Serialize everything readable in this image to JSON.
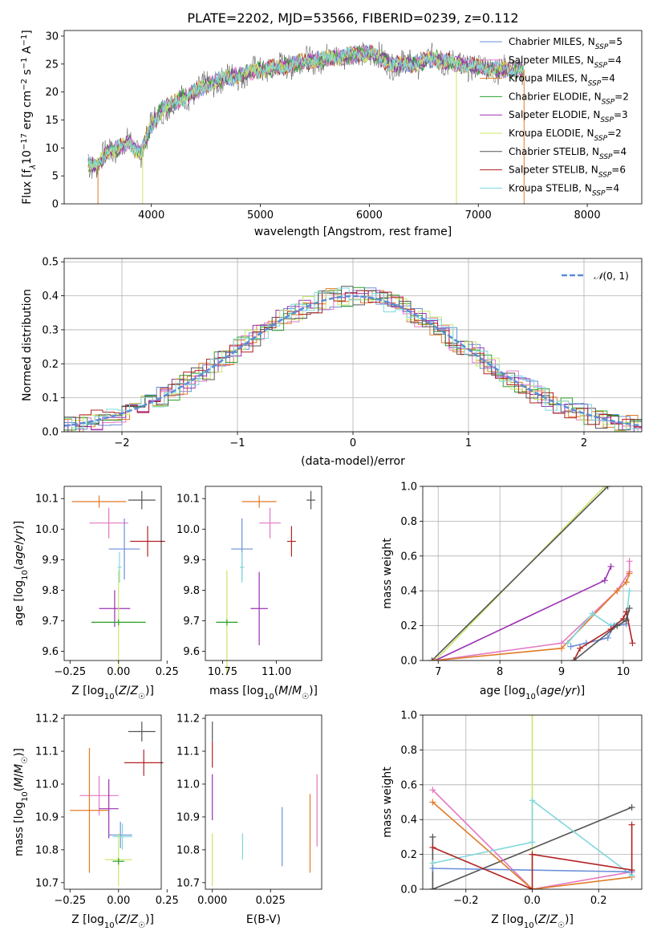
{
  "title": "PLATE=2202, MJD=53566, FIBERID=0239, z=0.112",
  "colors": {
    "Chabrier MILES": "#6a8fd8",
    "Salpeter MILES": "#e377c2",
    "Kroupa MILES": "#e07b28",
    "Chabrier ELODIE": "#2ca02c",
    "Salpeter ELODIE": "#9b30b4",
    "Kroupa ELODIE": "#c7e86a",
    "Chabrier STELIB": "#555555",
    "Salpeter STELIB": "#b22222",
    "Kroupa STELIB": "#7fd8dc"
  },
  "chart_data": [
    {
      "id": "spectrum",
      "type": "line",
      "xlabel": "wavelength [Angstrom, rest frame]",
      "ylabel": "Flux [f_λ10^-17 erg cm^-2 s^-1 A^-1]",
      "xlim": [
        3200,
        8500
      ],
      "ylim": [
        0,
        31
      ],
      "xticks": [
        4000,
        5000,
        6000,
        7000,
        8000
      ],
      "yticks": [
        0,
        5,
        10,
        15,
        20,
        25,
        30
      ],
      "grid": false,
      "legend_position": "top-right",
      "continuum": {
        "x": [
          3400,
          3500,
          3600,
          3700,
          3800,
          3900,
          4000,
          4100,
          4200,
          4400,
          4600,
          4800,
          5000,
          5200,
          5400,
          5600,
          5800,
          6000,
          6200,
          6400,
          6600,
          6800,
          7000,
          7200,
          7400
        ],
        "y": [
          7.5,
          6.5,
          9.5,
          10,
          11,
          9,
          14,
          17,
          18,
          20,
          22,
          23,
          24,
          24.5,
          25.5,
          26,
          26.5,
          27,
          25,
          25,
          26,
          25,
          24.5,
          24,
          24
        ]
      },
      "series": [
        {
          "name": "Chabrier MILES, N_SSP=5",
          "label": "Chabrier MILES",
          "sub": "SSP",
          "n": "=5"
        },
        {
          "name": "Salpeter MILES, N_SSP=4",
          "label": "Salpeter MILES",
          "sub": "SSP",
          "n": "=4"
        },
        {
          "name": "Kroupa MILES, N_SSP=4",
          "label": "Kroupa MILES",
          "sub": "SSP",
          "n": "=4"
        },
        {
          "name": "Chabrier ELODIE, N_SSP=2",
          "label": "Chabrier ELODIE",
          "sub": "SSP",
          "n": "=2"
        },
        {
          "name": "Salpeter ELODIE, N_SSP=3",
          "label": "Salpeter ELODIE",
          "sub": "SSP",
          "n": "=3"
        },
        {
          "name": "Kroupa ELODIE, N_SSP=2",
          "label": "Kroupa ELODIE",
          "sub": "SSP",
          "n": "=2"
        },
        {
          "name": "Chabrier STELIB, N_SSP=4",
          "label": "Chabrier STELIB",
          "sub": "SSP",
          "n": "=4"
        },
        {
          "name": "Salpeter STELIB, N_SSP=6",
          "label": "Salpeter STELIB",
          "sub": "SSP",
          "n": "=6"
        },
        {
          "name": "Kroupa STELIB, N_SSP=4",
          "label": "Kroupa STELIB",
          "sub": "SSP",
          "n": "=4"
        }
      ]
    },
    {
      "id": "residuals",
      "type": "histogram",
      "xlabel": "(data-model)/error",
      "ylabel": "Normed distribution",
      "xlim": [
        -2.5,
        2.5
      ],
      "ylim": [
        0,
        0.51
      ],
      "xticks": [
        -2,
        -1,
        0,
        1,
        2
      ],
      "yticks": [
        0.0,
        0.1,
        0.2,
        0.3,
        0.4,
        0.5
      ],
      "grid": true,
      "legend_position": "top-right",
      "reference": {
        "name": "N(0,1)",
        "mean": 0,
        "sigma": 1
      },
      "bin_width": 0.1
    },
    {
      "id": "age-vs-Z",
      "type": "errorbar",
      "xlabel": "Z [log10(Z/Z☉)]",
      "ylabel": "age  [log10(age/yr)]",
      "xlim": [
        -0.28,
        0.22
      ],
      "ylim": [
        9.57,
        10.14
      ],
      "xticks": [
        -0.25,
        0.0,
        0.25
      ],
      "yticks": [
        9.6,
        9.7,
        9.8,
        9.9,
        10.0,
        10.1
      ],
      "grid": false,
      "points": [
        {
          "model": "Chabrier STELIB",
          "x": 0.12,
          "y": 10.095,
          "xerr": 0.07,
          "yerr": 0.03
        },
        {
          "model": "Kroupa MILES",
          "x": -0.1,
          "y": 10.09,
          "xerr": 0.14,
          "yerr": 0.02
        },
        {
          "model": "Salpeter MILES",
          "x": -0.05,
          "y": 10.02,
          "xerr": 0.1,
          "yerr": 0.05
        },
        {
          "model": "Salpeter STELIB",
          "x": 0.15,
          "y": 9.96,
          "xerr": 0.09,
          "yerr": 0.05
        },
        {
          "model": "Chabrier MILES",
          "x": 0.03,
          "y": 9.935,
          "xerr": 0.08,
          "yerr": 0.1
        },
        {
          "model": "Kroupa STELIB",
          "x": 0.005,
          "y": 9.875,
          "xerr": 0.01,
          "yerr": 0.05
        },
        {
          "model": "Salpeter ELODIE",
          "x": -0.02,
          "y": 9.74,
          "xerr": 0.08,
          "yerr": 0.06
        },
        {
          "model": "Kroupa ELODIE",
          "x": 0.0,
          "y": 9.695,
          "xerr": 0.1,
          "yerr": 0.17
        },
        {
          "model": "Chabrier ELODIE",
          "x": 0.0,
          "y": 9.695,
          "xerr": 0.14,
          "yerr": 0.01
        }
      ]
    },
    {
      "id": "age-vs-mass",
      "type": "errorbar",
      "xlabel": "mass [log10(M/M☉)]",
      "ylabel": "",
      "xlim": [
        10.67,
        11.21
      ],
      "ylim": [
        9.57,
        10.14
      ],
      "xticks": [
        10.75,
        11.0
      ],
      "yticks": [
        9.6,
        9.7,
        9.8,
        9.9,
        10.0,
        10.1
      ],
      "grid": false,
      "points": [
        {
          "model": "Chabrier STELIB",
          "x": 11.16,
          "y": 10.095,
          "xerr": 0.02,
          "yerr": 0.03
        },
        {
          "model": "Kroupa MILES",
          "x": 10.92,
          "y": 10.09,
          "xerr": 0.08,
          "yerr": 0.02
        },
        {
          "model": "Salpeter MILES",
          "x": 10.97,
          "y": 10.02,
          "xerr": 0.05,
          "yerr": 0.05
        },
        {
          "model": "Salpeter STELIB",
          "x": 11.07,
          "y": 9.96,
          "xerr": 0.02,
          "yerr": 0.05
        },
        {
          "model": "Chabrier MILES",
          "x": 10.84,
          "y": 9.935,
          "xerr": 0.05,
          "yerr": 0.1
        },
        {
          "model": "Kroupa STELIB",
          "x": 10.84,
          "y": 9.875,
          "xerr": 0.01,
          "yerr": 0.05
        },
        {
          "model": "Salpeter ELODIE",
          "x": 10.92,
          "y": 9.74,
          "xerr": 0.04,
          "yerr": 0.12
        },
        {
          "model": "Kroupa ELODIE",
          "x": 10.77,
          "y": 9.695,
          "xerr": 0.05,
          "yerr": 0.17
        },
        {
          "model": "Chabrier ELODIE",
          "x": 10.77,
          "y": 9.695,
          "xerr": 0.05,
          "yerr": 0.01
        }
      ]
    },
    {
      "id": "weight-vs-age",
      "type": "line",
      "xlabel": "age  [log10(age/yr)]",
      "ylabel": "mass weight",
      "xlim": [
        6.75,
        10.3
      ],
      "ylim": [
        0,
        1.0
      ],
      "xticks": [
        7,
        8,
        9,
        10
      ],
      "yticks": [
        0.0,
        0.2,
        0.4,
        0.6,
        0.8,
        1.0
      ],
      "grid": true,
      "series": [
        {
          "model": "Kroupa ELODIE",
          "x": [
            6.95,
            9.7
          ],
          "y": [
            0.0,
            1.0
          ]
        },
        {
          "model": "Chabrier STELIB",
          "x": [
            6.9,
            9.75
          ],
          "y": [
            0.0,
            1.0
          ]
        },
        {
          "model": "Salpeter ELODIE",
          "x": [
            6.95,
            9.7,
            9.8
          ],
          "y": [
            0.0,
            0.46,
            0.54
          ]
        },
        {
          "model": "Salpeter MILES",
          "x": [
            6.95,
            9.0,
            9.9,
            10.1,
            10.1
          ],
          "y": [
            0.0,
            0.1,
            0.4,
            0.51,
            0.57
          ]
        },
        {
          "model": "Kroupa MILES",
          "x": [
            6.95,
            9.0,
            9.9,
            10.05,
            10.1
          ],
          "y": [
            0.0,
            0.07,
            0.4,
            0.45,
            0.5
          ]
        },
        {
          "model": "Kroupa STELIB",
          "x": [
            9.1,
            9.5,
            9.8,
            10.05,
            10.1
          ],
          "y": [
            0.1,
            0.27,
            0.2,
            0.24,
            0.4
          ]
        },
        {
          "model": "Chabrier MILES",
          "x": [
            9.15,
            9.4,
            9.75,
            9.85,
            10.05
          ],
          "y": [
            0.08,
            0.1,
            0.13,
            0.2,
            0.21
          ]
        },
        {
          "model": "Salpeter STELIB",
          "x": [
            9.2,
            9.3,
            9.8,
            10.0,
            10.05,
            10.15
          ],
          "y": [
            0.0,
            0.07,
            0.18,
            0.24,
            0.28,
            0.1
          ]
        },
        {
          "model": "Chabrier STELIB",
          "x": [
            9.2,
            9.9,
            10.05,
            10.1
          ],
          "y": [
            0.0,
            0.2,
            0.23,
            0.3
          ]
        }
      ]
    },
    {
      "id": "mass-vs-Z",
      "type": "errorbar",
      "xlabel": "Z [log10(Z/Z☉)]",
      "ylabel": "mass [log10(M/M☉)]",
      "xlim": [
        -0.28,
        0.22
      ],
      "ylim": [
        10.68,
        11.21
      ],
      "xticks": [
        -0.25,
        0.0,
        0.25
      ],
      "yticks": [
        10.7,
        10.8,
        10.9,
        11.0,
        11.1,
        11.2
      ],
      "grid": false,
      "points": [
        {
          "model": "Chabrier STELIB",
          "x": 0.12,
          "y": 11.16,
          "xerr": 0.07,
          "yerr": 0.03
        },
        {
          "model": "Salpeter STELIB",
          "x": 0.13,
          "y": 11.065,
          "xerr": 0.1,
          "yerr": 0.04
        },
        {
          "model": "Salpeter MILES",
          "x": -0.1,
          "y": 10.965,
          "xerr": 0.1,
          "yerr": 0.06
        },
        {
          "model": "Kroupa MILES",
          "x": -0.15,
          "y": 10.92,
          "xerr": 0.1,
          "yerr": 0.19
        },
        {
          "model": "Salpeter ELODIE",
          "x": -0.05,
          "y": 10.925,
          "xerr": 0.05,
          "yerr": 0.09
        },
        {
          "model": "Chabrier MILES",
          "x": 0.01,
          "y": 10.845,
          "xerr": 0.06,
          "yerr": 0.04
        },
        {
          "model": "Kroupa STELIB",
          "x": 0.02,
          "y": 10.84,
          "xerr": 0.05,
          "yerr": 0.04
        },
        {
          "model": "Kroupa ELODIE",
          "x": 0.0,
          "y": 10.77,
          "xerr": 0.07,
          "yerr": 0.08
        },
        {
          "model": "Chabrier ELODIE",
          "x": 0.0,
          "y": 10.765,
          "xerr": 0.03,
          "yerr": 0.01
        }
      ]
    },
    {
      "id": "mass-vs-EBV",
      "type": "errorbar",
      "xlabel": "E(B-V)",
      "ylabel": "",
      "xlim": [
        -0.003,
        0.047
      ],
      "ylim": [
        10.68,
        11.21
      ],
      "xticks": [
        0.0,
        0.025
      ],
      "xtick_labels": [
        "0.000",
        "0.025"
      ],
      "yticks": [
        10.7,
        10.8,
        10.9,
        11.0,
        11.1,
        11.2
      ],
      "grid": false,
      "points": [
        {
          "model": "Chabrier STELIB",
          "x": 0.0,
          "y": 11.16,
          "xerr": 0.0,
          "yerr": 0.03
        },
        {
          "model": "Salpeter STELIB",
          "x": 0.0,
          "y": 11.09,
          "xerr": 0.0,
          "yerr": 0.04
        },
        {
          "model": "Salpeter ELODIE",
          "x": 0.0,
          "y": 10.96,
          "xerr": 0.0,
          "yerr": 0.07
        },
        {
          "model": "Kroupa ELODIE",
          "x": 0.0,
          "y": 10.77,
          "xerr": 0.0,
          "yerr": 0.08
        },
        {
          "model": "Kroupa STELIB",
          "x": 0.013,
          "y": 10.81,
          "xerr": 0.0,
          "yerr": 0.04
        },
        {
          "model": "Chabrier MILES",
          "x": 0.03,
          "y": 10.84,
          "xerr": 0.0,
          "yerr": 0.09
        },
        {
          "model": "Kroupa MILES",
          "x": 0.042,
          "y": 10.85,
          "xerr": 0.0,
          "yerr": 0.12
        },
        {
          "model": "Salpeter MILES",
          "x": 0.045,
          "y": 10.92,
          "xerr": 0.0,
          "yerr": 0.11
        }
      ]
    },
    {
      "id": "weight-vs-Z",
      "type": "line",
      "xlabel": "Z [log10(Z/Z☉)]",
      "ylabel": "mass weight",
      "xlim": [
        -0.33,
        0.33
      ],
      "ylim": [
        0,
        1.0
      ],
      "xticks": [
        -0.2,
        0.0,
        0.2
      ],
      "yticks": [
        0.0,
        0.2,
        0.4,
        0.6,
        0.8,
        1.0
      ],
      "grid": true,
      "series": [
        {
          "model": "Kroupa ELODIE",
          "x": [
            0.0,
            0.0
          ],
          "y": [
            0.0,
            1.0
          ]
        },
        {
          "model": "Chabrier STELIB",
          "x": [
            -0.3,
            0.3
          ],
          "y": [
            0.0,
            0.47
          ]
        },
        {
          "model": "Chabrier STELIB",
          "x": [
            -0.3,
            -0.3
          ],
          "y": [
            0.0,
            0.3
          ]
        },
        {
          "model": "Salpeter MILES",
          "x": [
            -0.3,
            0.0,
            0.3
          ],
          "y": [
            0.57,
            0.0,
            0.1
          ]
        },
        {
          "model": "Kroupa MILES",
          "x": [
            -0.3,
            0.0,
            0.3
          ],
          "y": [
            0.5,
            0.0,
            0.07
          ]
        },
        {
          "model": "Kroupa STELIB",
          "x": [
            -0.3,
            0.0,
            0.0,
            0.3
          ],
          "y": [
            0.15,
            0.27,
            0.51,
            0.08
          ]
        },
        {
          "model": "Chabrier MILES",
          "x": [
            -0.3,
            0.3
          ],
          "y": [
            0.12,
            0.1
          ]
        },
        {
          "model": "Salpeter STELIB",
          "x": [
            -0.3,
            0.0,
            0.0,
            0.3,
            0.3
          ],
          "y": [
            0.24,
            0.0,
            0.2,
            0.11,
            0.37
          ]
        }
      ]
    }
  ]
}
